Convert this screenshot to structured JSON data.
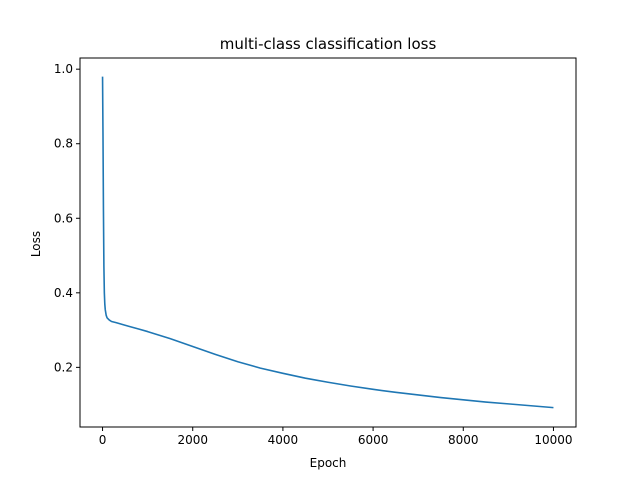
{
  "chart_data": {
    "type": "line",
    "title": "multi-class classification loss",
    "xlabel": "Epoch",
    "ylabel": "Loss",
    "xlim": [
      -500,
      10500
    ],
    "ylim": [
      0.04,
      1.03
    ],
    "x_ticks": [
      0,
      2000,
      4000,
      6000,
      8000,
      10000
    ],
    "x_tick_labels": [
      "0",
      "2000",
      "4000",
      "6000",
      "8000",
      "10000"
    ],
    "y_ticks": [
      0.2,
      0.4,
      0.6,
      0.8,
      1.0
    ],
    "y_tick_labels": [
      "0.2",
      "0.4",
      "0.6",
      "0.8",
      "1.0"
    ],
    "grid": false,
    "color": "#1f77b4",
    "series": [
      {
        "x": [
          0,
          10,
          20,
          30,
          40,
          50,
          60,
          80,
          100,
          150,
          200,
          300,
          500,
          800,
          1000,
          1500,
          2000,
          2500,
          3000,
          3500,
          4000,
          4500,
          5000,
          5500,
          6000,
          6500,
          7000,
          7500,
          8000,
          8500,
          9000,
          9500,
          10000
        ],
        "y": [
          0.98,
          0.82,
          0.62,
          0.47,
          0.4,
          0.37,
          0.355,
          0.34,
          0.333,
          0.327,
          0.323,
          0.32,
          0.313,
          0.303,
          0.296,
          0.277,
          0.256,
          0.235,
          0.215,
          0.198,
          0.184,
          0.171,
          0.16,
          0.15,
          0.141,
          0.133,
          0.126,
          0.119,
          0.113,
          0.107,
          0.102,
          0.097,
          0.092
        ]
      }
    ]
  }
}
